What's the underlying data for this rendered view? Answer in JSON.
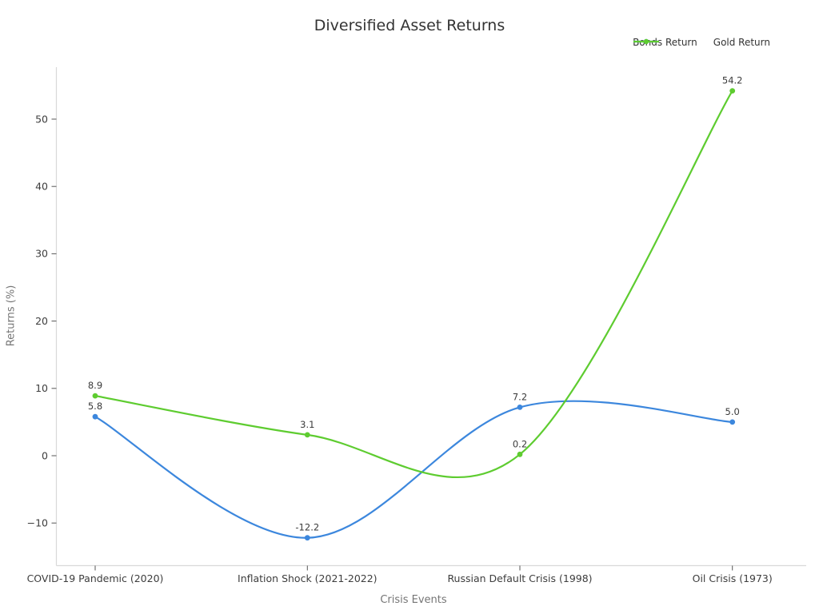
{
  "title": "Diversified Asset Returns",
  "chart_data": {
    "type": "line",
    "title": "Diversified Asset Returns",
    "xlabel": "Crisis Events",
    "ylabel": "Returns (%)",
    "curve": "smooth-spline",
    "grid": false,
    "legend_position": "top-right-horizontal",
    "background": "#ffffff",
    "spine_color": "#d9d9d9",
    "categories": [
      "COVID-19 Pandemic (2020)",
      "Inflation Shock (2021-2022)",
      "Russian Default Crisis (1998)",
      "Oil Crisis (1973)"
    ],
    "series": [
      {
        "name": "Bonds Return",
        "color": "#3c87dd",
        "values": [
          5.8,
          -12.2,
          7.2,
          5.0
        ],
        "point_labels": [
          "5.8",
          "-12.2",
          "7.2",
          "5.0"
        ]
      },
      {
        "name": "Gold Return",
        "color": "#5ecc30",
        "values": [
          8.9,
          3.1,
          0.2,
          54.2
        ],
        "point_labels": [
          "8.9",
          "3.1",
          "0.2",
          "54.2"
        ]
      }
    ],
    "yticks": [
      {
        "value": -10,
        "label": "−10"
      },
      {
        "value": 0,
        "label": "0"
      },
      {
        "value": 10,
        "label": "10"
      },
      {
        "value": 20,
        "label": "20"
      },
      {
        "value": 30,
        "label": "30"
      },
      {
        "value": 40,
        "label": "40"
      },
      {
        "value": 50,
        "label": "50"
      }
    ],
    "ylim": [
      -16.3,
      57.7
    ]
  }
}
